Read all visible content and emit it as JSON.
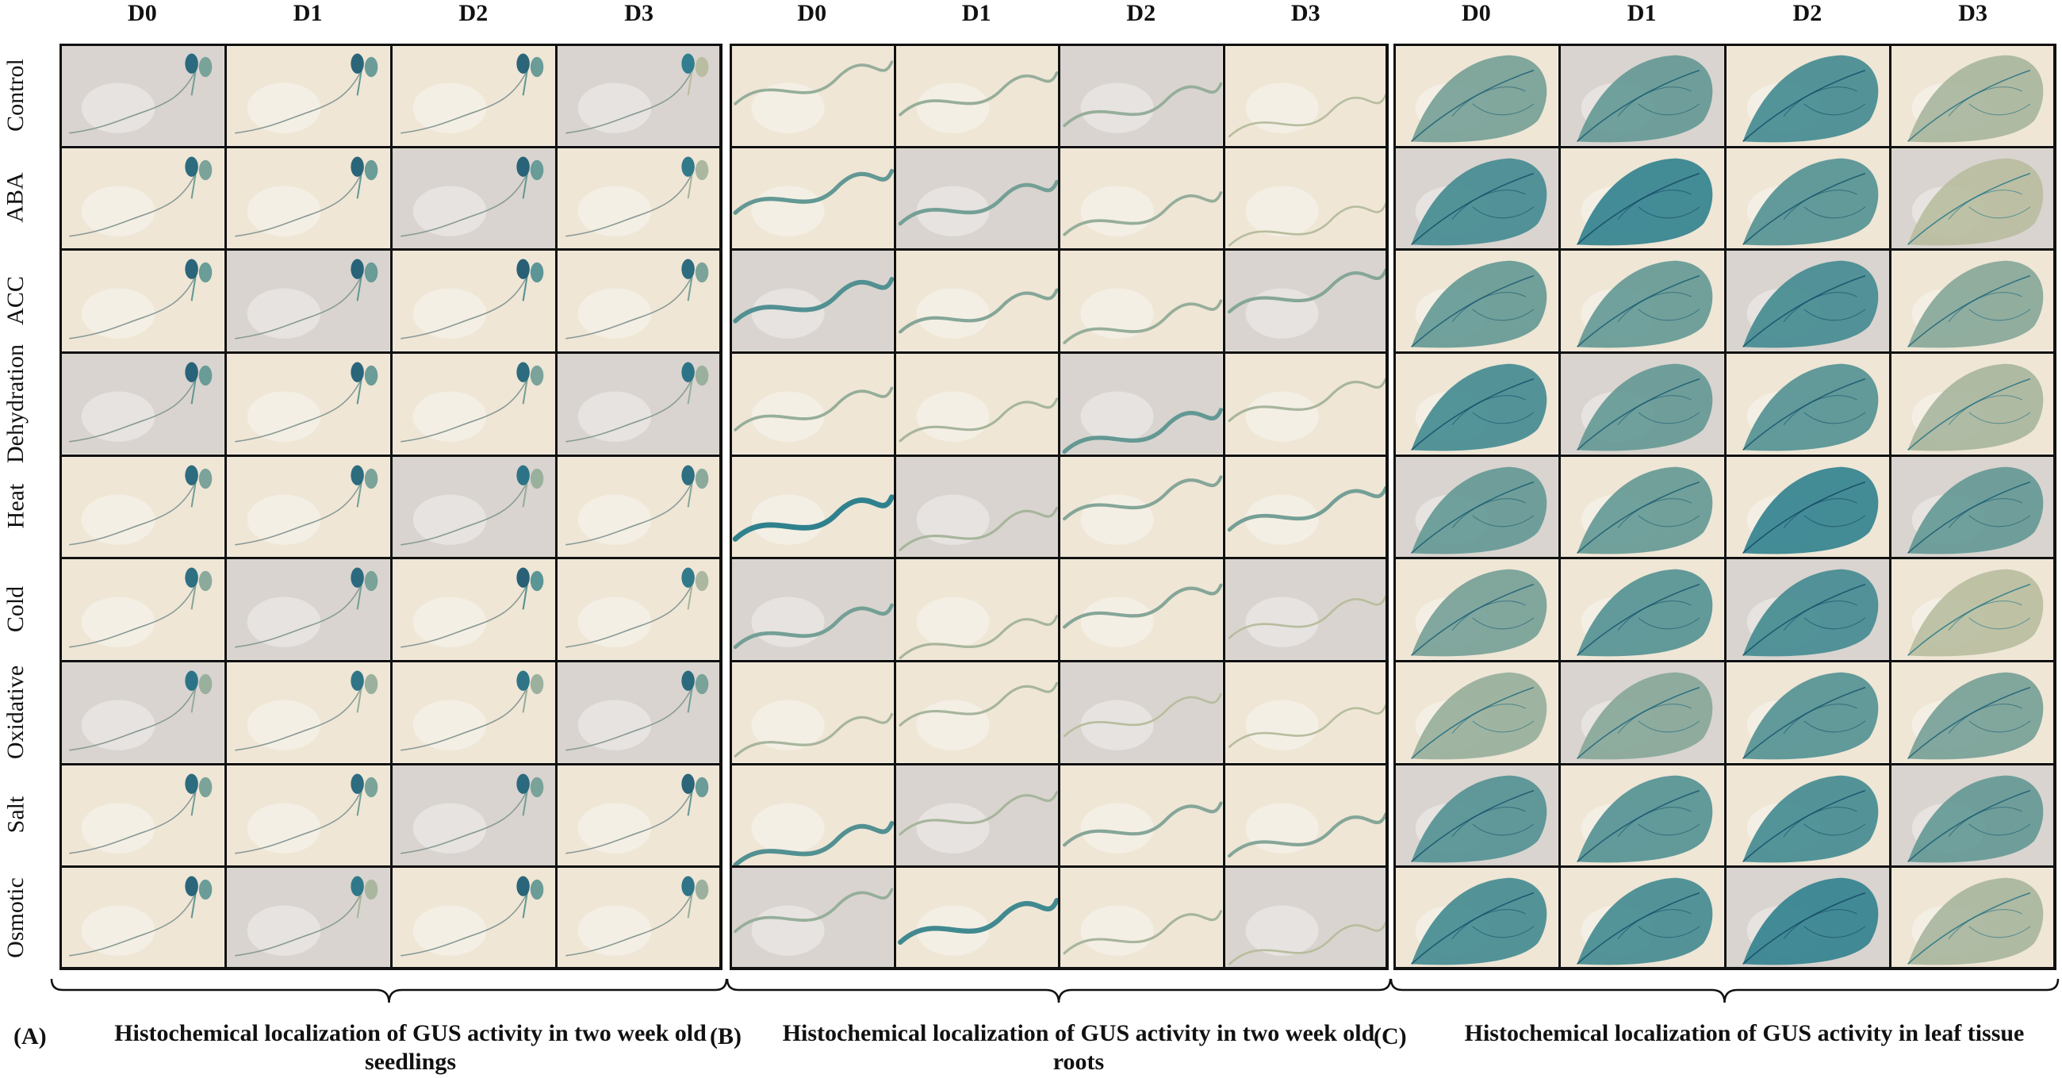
{
  "panels": [
    {
      "id": "A",
      "letter": "(A)",
      "caption": "Histochemical localization of GUS activity in two week old seedlings",
      "kind": "seedling"
    },
    {
      "id": "B",
      "letter": "(B)",
      "caption": "Histochemical localization of GUS activity in two week old roots",
      "kind": "root"
    },
    {
      "id": "C",
      "letter": "(C)",
      "caption": "Histochemical localization of GUS activity in leaf tissue",
      "kind": "leaf"
    }
  ],
  "columns": [
    "D0",
    "D1",
    "D2",
    "D3"
  ],
  "rows": [
    "Control",
    "ABA",
    "ACC",
    "Dehydration",
    "Heat",
    "Cold",
    "Oxidative",
    "Salt",
    "Osmotic"
  ],
  "colors": {
    "gus_blue": "#1f7a8c",
    "gus_dark": "#0e3f5c",
    "bg_cream": "#efe6d6",
    "bg_grey": "#d9d4cf",
    "border": "#111111"
  },
  "staining_levels": {
    "A": [
      [
        0.5,
        0.6,
        0.6,
        0.1
      ],
      [
        0.5,
        0.6,
        0.6,
        0.2
      ],
      [
        0.6,
        0.6,
        0.7,
        0.5
      ],
      [
        0.6,
        0.6,
        0.5,
        0.3
      ],
      [
        0.5,
        0.5,
        0.3,
        0.4
      ],
      [
        0.4,
        0.5,
        0.7,
        0.2
      ],
      [
        0.3,
        0.3,
        0.3,
        0.5
      ],
      [
        0.5,
        0.5,
        0.5,
        0.6
      ],
      [
        0.6,
        0.2,
        0.6,
        0.3
      ]
    ],
    "B": [
      [
        0.3,
        0.3,
        0.3,
        0.1
      ],
      [
        0.6,
        0.5,
        0.3,
        0.1
      ],
      [
        0.7,
        0.4,
        0.3,
        0.4
      ],
      [
        0.3,
        0.2,
        0.6,
        0.2
      ],
      [
        0.9,
        0.2,
        0.4,
        0.5
      ],
      [
        0.5,
        0.2,
        0.4,
        0.1
      ],
      [
        0.2,
        0.2,
        0.1,
        0.1
      ],
      [
        0.7,
        0.2,
        0.4,
        0.4
      ],
      [
        0.3,
        0.8,
        0.2,
        0.1
      ]
    ],
    "C": [
      [
        0.5,
        0.6,
        0.8,
        0.2
      ],
      [
        0.8,
        0.9,
        0.7,
        0.1
      ],
      [
        0.6,
        0.6,
        0.8,
        0.4
      ],
      [
        0.8,
        0.6,
        0.7,
        0.2
      ],
      [
        0.6,
        0.6,
        0.9,
        0.6
      ],
      [
        0.5,
        0.7,
        0.8,
        0.1
      ],
      [
        0.3,
        0.4,
        0.7,
        0.5
      ],
      [
        0.7,
        0.7,
        0.8,
        0.6
      ],
      [
        0.8,
        0.8,
        0.9,
        0.2
      ]
    ]
  }
}
